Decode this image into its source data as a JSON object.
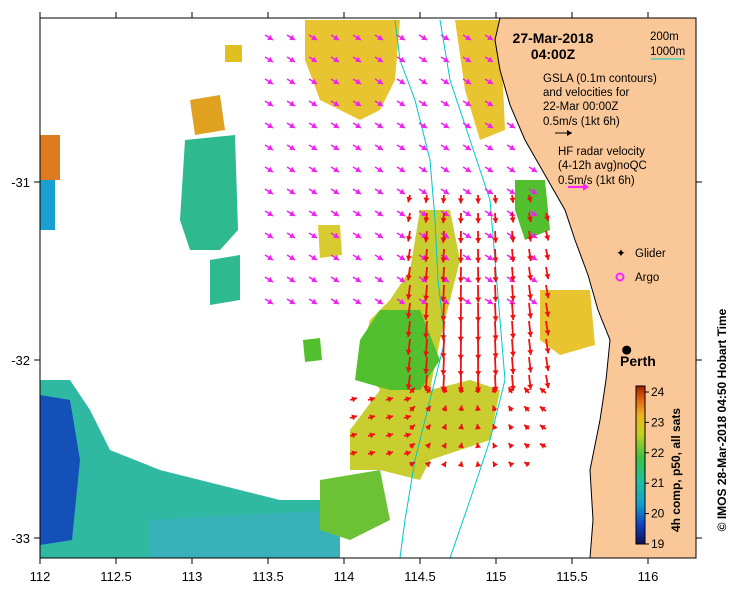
{
  "title": {
    "date": "27-Mar-2018",
    "time": "04:00Z"
  },
  "scale_legend": {
    "depth_200": "200m",
    "depth_1000": "1000m",
    "color_200": "#111111",
    "color_1000": "#00d0d0"
  },
  "gsla_legend": {
    "line1": "GSLA (0.1m contours)",
    "line2": "and velocities for",
    "line3": "22-Mar 00:00Z",
    "line4": "0.5m/s (1kt 6h)"
  },
  "hf_legend": {
    "line1": "HF radar velocity",
    "line2": "(4-12h avg)noQC",
    "line3": "0.5m/s (1kt 6h)",
    "arrow_color": "#ff22ff"
  },
  "markers": {
    "glider": "Glider",
    "argo": "Argo",
    "glider_color": "#ff22ff",
    "argo_color": "#ff22ff"
  },
  "city": {
    "name": "Perth",
    "lon": 115.86,
    "lat": -31.95
  },
  "axes": {
    "x_ticks": [
      "112",
      "112.5",
      "113",
      "113.5",
      "114",
      "114.5",
      "115",
      "115.5",
      "116"
    ],
    "y_ticks": [
      "-31",
      "-32",
      "-33"
    ],
    "lon_range": [
      112,
      116.3
    ],
    "lat_range": [
      -33.1,
      -30.1
    ]
  },
  "colorbar": {
    "label": "4h comp, p50, all sats",
    "ticks": [
      "24",
      "23",
      "22",
      "21",
      "20",
      "19"
    ],
    "range": [
      19,
      24
    ]
  },
  "sidebar": {
    "credit": "© IMOS 28-Mar-2018 04:50 Hobart Time"
  },
  "colors": {
    "land": "#fac898",
    "sea": "#ffffff",
    "hf_arrow": "#ee1111",
    "gsla_arrow": "#ee22ee"
  }
}
